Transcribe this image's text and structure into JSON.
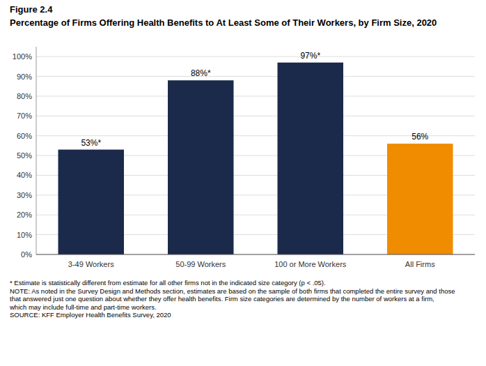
{
  "chart_data": {
    "type": "bar",
    "title": "Percentage of Firms Offering Health Benefits to At Least Some of Their Workers, by Firm Size, 2020",
    "annotations": [
      "Figure 2.4",
      "* Estimate is statistically different from estimate for all other firms not in the indicated size category (p < .05).",
      "NOTE: As noted in the Survey Design and Methods section, estimates are based on the sample of both firms that completed the entire survey and those",
      "that answered just one question about whether they offer health benefits. Firm size categories are determined by the number of workers at a firm,",
      "which may include full-time and part-time workers.",
      "SOURCE: KFF Employer Health Benefits Survey, 2020"
    ],
    "categories": [
      "3-49 Workers",
      "50-99 Workers",
      "100 or More Workers",
      "All Firms"
    ],
    "values": [
      53,
      88,
      97,
      56
    ],
    "value_labels": [
      "53%*",
      "88%*",
      "97%*",
      "56%"
    ],
    "colors": [
      "#1b2a4a",
      "#1b2a4a",
      "#1b2a4a",
      "#f08c00"
    ],
    "data_labels": true,
    "ylim": [
      0,
      105
    ],
    "yticks": [
      {
        "value": 0,
        "label": "0%"
      },
      {
        "value": 10,
        "label": "10%"
      },
      {
        "value": 20,
        "label": "20%"
      },
      {
        "value": 30,
        "label": "30%"
      },
      {
        "value": 40,
        "label": "40%"
      },
      {
        "value": 50,
        "label": "50%"
      },
      {
        "value": 60,
        "label": "60%"
      },
      {
        "value": 70,
        "label": "70%"
      },
      {
        "value": 80,
        "label": "80%"
      },
      {
        "value": 90,
        "label": "90%"
      },
      {
        "value": 100,
        "label": "100%"
      }
    ],
    "grid": true
  }
}
